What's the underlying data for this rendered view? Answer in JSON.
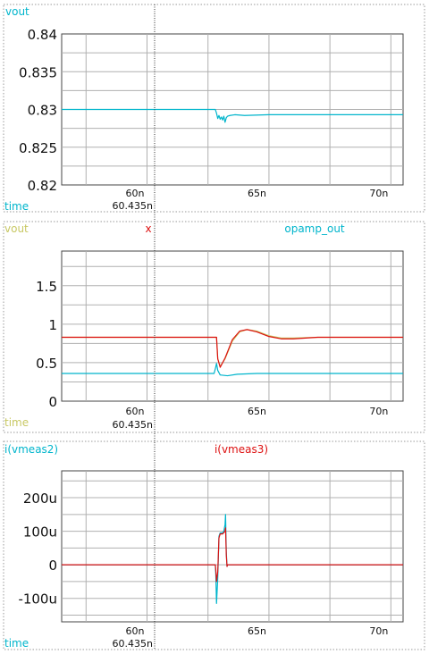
{
  "colors": {
    "cyan": "#00b5cc",
    "red": "#dd1111",
    "olive": "#c8c864",
    "dark": "#444444",
    "grid": "#b0b0b0",
    "frame": "#999999",
    "cursor": "#333333"
  },
  "cursor": {
    "x": 60.435,
    "label": "60.435n"
  },
  "chart_data": [
    {
      "type": "line",
      "legend": [
        "vout"
      ],
      "legend_colors": [
        "#00b5cc"
      ],
      "xlabel": "time",
      "xlim": [
        56.5,
        70.5
      ],
      "xticks": [
        60,
        65,
        70
      ],
      "xtick_labels": [
        "60n",
        "65n",
        "70n"
      ],
      "ylim": [
        0.82,
        0.84
      ],
      "yticks": [
        0.82,
        0.825,
        0.83,
        0.835,
        0.84
      ],
      "ytick_labels": [
        "0.82",
        "0.825",
        "0.83",
        "0.835",
        "0.84"
      ],
      "grid": true,
      "series": [
        {
          "name": "vout",
          "color": "#00b5cc",
          "x": [
            56.5,
            62.8,
            62.85,
            62.9,
            62.95,
            63.0,
            63.05,
            63.1,
            63.15,
            63.2,
            63.25,
            63.3,
            63.4,
            63.6,
            64.0,
            65.0,
            68.0,
            70.5
          ],
          "y": [
            0.83,
            0.83,
            0.8295,
            0.8288,
            0.8292,
            0.8287,
            0.829,
            0.8286,
            0.8291,
            0.8283,
            0.8289,
            0.8291,
            0.8292,
            0.8293,
            0.8292,
            0.8293,
            0.8293,
            0.8293
          ]
        }
      ]
    },
    {
      "type": "line",
      "legend": [
        "vout",
        "x",
        "opamp_out"
      ],
      "legend_colors": [
        "#c8c864",
        "#dd1111",
        "#00b5cc"
      ],
      "xlabel": "time",
      "xlim": [
        56.5,
        70.5
      ],
      "xticks": [
        60,
        65,
        70
      ],
      "xtick_labels": [
        "60n",
        "65n",
        "70n"
      ],
      "ylim": [
        0,
        1.95
      ],
      "yticks": [
        0,
        0.5,
        1,
        1.5
      ],
      "ytick_labels": [
        "0",
        "0.5",
        "1",
        "1.5"
      ],
      "grid": true,
      "series": [
        {
          "name": "vout",
          "color": "#c8c864",
          "x": [
            56.5,
            62.85,
            62.9,
            63.0,
            63.2,
            63.5,
            63.8,
            64.1,
            64.5,
            65.0,
            65.5,
            66.0,
            67.0,
            70.5
          ],
          "y": [
            0.83,
            0.83,
            0.55,
            0.45,
            0.55,
            0.78,
            0.9,
            0.93,
            0.91,
            0.85,
            0.82,
            0.82,
            0.83,
            0.83
          ]
        },
        {
          "name": "x",
          "color": "#dd1111",
          "x": [
            56.5,
            62.85,
            62.9,
            63.0,
            63.2,
            63.5,
            63.8,
            64.1,
            64.5,
            65.0,
            65.5,
            66.0,
            67.0,
            70.5
          ],
          "y": [
            0.83,
            0.83,
            0.55,
            0.44,
            0.56,
            0.8,
            0.91,
            0.93,
            0.9,
            0.84,
            0.81,
            0.81,
            0.83,
            0.83
          ]
        },
        {
          "name": "opamp_out",
          "color": "#00b5cc",
          "x": [
            56.5,
            62.75,
            62.8,
            62.85,
            62.9,
            63.0,
            63.3,
            63.7,
            64.5,
            66.0,
            70.5
          ],
          "y": [
            0.36,
            0.36,
            0.42,
            0.49,
            0.4,
            0.34,
            0.33,
            0.35,
            0.36,
            0.36,
            0.36
          ]
        }
      ]
    },
    {
      "type": "line",
      "legend": [
        "i(vmeas2)",
        "i(vmeas3)"
      ],
      "legend_colors": [
        "#00b5cc",
        "#dd1111"
      ],
      "xlabel": "time",
      "xlim": [
        56.5,
        70.5
      ],
      "xticks": [
        60,
        65,
        70
      ],
      "xtick_labels": [
        "60n",
        "65n",
        "70n"
      ],
      "ylim": [
        -170,
        280
      ],
      "yticks": [
        -100,
        0,
        100,
        200
      ],
      "ytick_labels": [
        "-100u",
        "0",
        "100u",
        "200u"
      ],
      "grid": true,
      "series": [
        {
          "name": "i(vmeas2)",
          "color": "#00b5cc",
          "x": [
            56.5,
            62.8,
            62.82,
            62.85,
            62.9,
            62.95,
            63.0,
            63.1,
            63.15,
            63.2,
            63.22,
            63.25,
            63.28,
            63.3,
            70.5
          ],
          "y": [
            0,
            0,
            -30,
            -115,
            -40,
            85,
            95,
            95,
            100,
            120,
            150,
            40,
            -5,
            0,
            0
          ]
        },
        {
          "name": "i(vmeas3)",
          "color": "#dd1111",
          "x": [
            56.5,
            62.8,
            62.82,
            62.85,
            62.9,
            62.95,
            63.0,
            63.1,
            63.15,
            63.2,
            63.22,
            63.25,
            63.28,
            63.3,
            70.5
          ],
          "y": [
            0,
            0,
            -15,
            -50,
            -20,
            80,
            92,
            92,
            96,
            100,
            110,
            30,
            -5,
            0,
            0
          ]
        }
      ]
    }
  ]
}
